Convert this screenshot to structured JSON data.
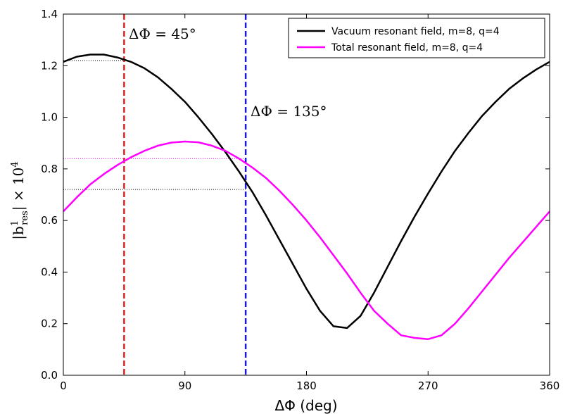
{
  "chart_data": {
    "type": "line",
    "xlabel": "ΔΦ (deg)",
    "ylabel": "|b",
    "ylabel_sup": "1",
    "ylabel_sub": "res",
    "ylabel_tail": "| × 10",
    "ylabel_exp": "4",
    "xlim": [
      0,
      360
    ],
    "ylim": [
      0.0,
      1.4
    ],
    "xticks": [
      0,
      90,
      180,
      270,
      360
    ],
    "yticks": [
      0.0,
      0.2,
      0.4,
      0.6,
      0.8,
      1.0,
      1.2,
      1.4
    ],
    "grid": false,
    "legend_position": "top-right",
    "series": [
      {
        "name": "Vacuum resonant field, m=8, q=4",
        "color": "#000000",
        "x": [
          0,
          10,
          20,
          30,
          40,
          50,
          60,
          70,
          80,
          90,
          100,
          110,
          120,
          130,
          140,
          150,
          160,
          170,
          180,
          190,
          200,
          210,
          220,
          230,
          240,
          250,
          260,
          270,
          280,
          290,
          300,
          310,
          320,
          330,
          340,
          350,
          360
        ],
        "values": [
          1.215,
          1.235,
          1.243,
          1.243,
          1.232,
          1.215,
          1.19,
          1.155,
          1.11,
          1.06,
          1.0,
          0.935,
          0.865,
          0.79,
          0.71,
          0.62,
          0.525,
          0.43,
          0.335,
          0.25,
          0.19,
          0.183,
          0.23,
          0.32,
          0.42,
          0.52,
          0.615,
          0.705,
          0.79,
          0.87,
          0.94,
          1.005,
          1.06,
          1.11,
          1.15,
          1.185,
          1.215
        ]
      },
      {
        "name": "Total resonant field, m=8, q=4",
        "color": "#ff00ff",
        "x": [
          0,
          10,
          20,
          30,
          40,
          50,
          60,
          70,
          80,
          90,
          100,
          110,
          120,
          130,
          140,
          150,
          160,
          170,
          180,
          190,
          200,
          210,
          220,
          230,
          240,
          250,
          260,
          270,
          280,
          290,
          300,
          310,
          320,
          330,
          340,
          350,
          360
        ],
        "values": [
          0.635,
          0.69,
          0.74,
          0.78,
          0.815,
          0.845,
          0.87,
          0.89,
          0.902,
          0.906,
          0.903,
          0.89,
          0.87,
          0.84,
          0.805,
          0.765,
          0.715,
          0.66,
          0.6,
          0.535,
          0.465,
          0.395,
          0.32,
          0.25,
          0.2,
          0.155,
          0.145,
          0.14,
          0.155,
          0.2,
          0.26,
          0.325,
          0.39,
          0.455,
          0.515,
          0.575,
          0.635
        ]
      }
    ],
    "vlines": [
      {
        "x": 45,
        "color": "#dd2222",
        "label": "ΔΦ = 45°"
      },
      {
        "x": 135,
        "color": "#1a1ad6",
        "label": "ΔΦ = 135°"
      }
    ],
    "hlines": [
      {
        "y": 1.22,
        "x_end": 45,
        "color": "#000000"
      },
      {
        "y": 0.84,
        "x_end": 135,
        "color": "#ff00ff"
      },
      {
        "y": 0.72,
        "x_end": 135,
        "color": "#000000"
      }
    ]
  }
}
